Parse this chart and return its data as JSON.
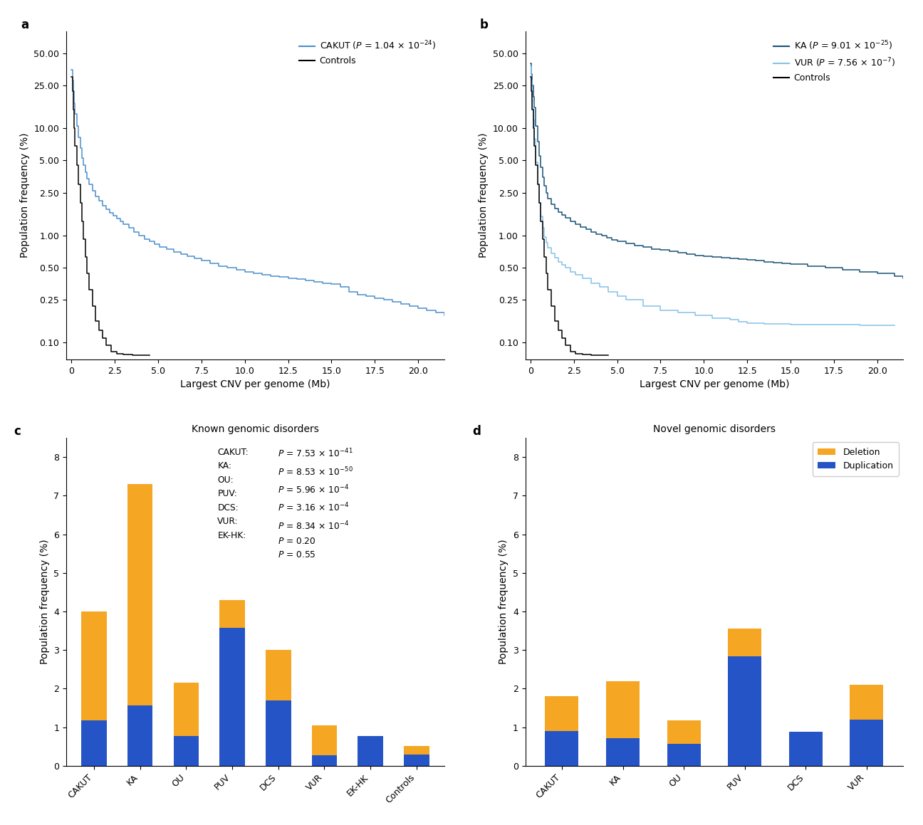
{
  "panel_a": {
    "title": "a",
    "xlabel": "Largest CNV per genome (Mb)",
    "ylabel": "Population frequency (%)",
    "cakut_label": "CAKUT ($P$ = 1.04 × 10$^{-24}$)",
    "controls_label": "Controls",
    "cakut_color": "#4d8fcc",
    "controls_color": "#000000",
    "yticks": [
      0.1,
      0.25,
      0.5,
      1.0,
      2.5,
      5.0,
      10.0,
      25.0,
      50.0
    ],
    "ytick_labels": [
      "0.10",
      "0.25",
      "0.50",
      "1.00",
      "2.50",
      "5.00",
      "10.00",
      "25.00",
      "50.00"
    ],
    "xticks": [
      0,
      2.5,
      5.0,
      7.5,
      10.0,
      12.5,
      15.0,
      17.5,
      20.0
    ],
    "xlim": [
      -0.3,
      21.5
    ],
    "ylim_log": [
      0.07,
      80
    ]
  },
  "panel_b": {
    "title": "b",
    "xlabel": "Largest CNV per genome (Mb)",
    "ylabel": "Population frequency (%)",
    "ka_label": "KA ($P$ = 9.01 × 10$^{-25}$)",
    "vur_label": "VUR ($P$ = 7.56 × 10$^{-7}$)",
    "controls_label": "Controls",
    "ka_color": "#1a5276",
    "vur_color": "#85c1e9",
    "controls_color": "#000000",
    "yticks": [
      0.1,
      0.25,
      0.5,
      1.0,
      2.5,
      5.0,
      10.0,
      25.0,
      50.0
    ],
    "ytick_labels": [
      "0.10",
      "0.25",
      "0.50",
      "1.00",
      "2.50",
      "5.00",
      "10.00",
      "25.00",
      "50.00"
    ],
    "xticks": [
      0,
      2.5,
      5.0,
      7.5,
      10.0,
      12.5,
      15.0,
      17.5,
      20.0
    ],
    "xlim": [
      -0.3,
      21.5
    ],
    "ylim_log": [
      0.07,
      80
    ]
  },
  "panel_c": {
    "title": "c",
    "plot_title": "Known genomic disorders",
    "xlabel": "",
    "ylabel": "Population frequency (%)",
    "categories": [
      "CAKUT",
      "KA",
      "OU",
      "PUV",
      "DCS",
      "VUR",
      "EK-HK",
      "Controls"
    ],
    "blue_values": [
      1.17,
      1.57,
      0.78,
      3.57,
      1.7,
      0.28,
      0.78,
      0.3
    ],
    "gold_values": [
      2.83,
      5.73,
      1.37,
      0.73,
      1.3,
      0.77,
      0.0,
      0.22
    ],
    "blue_color": "#2554c7",
    "gold_color": "#f5a623",
    "ylim": [
      0,
      8.5
    ],
    "yticks": [
      0,
      1,
      2,
      3,
      4,
      5,
      6,
      7,
      8
    ]
  },
  "panel_d": {
    "title": "d",
    "plot_title": "Novel genomic disorders",
    "xlabel": "",
    "ylabel": "Population frequency (%)",
    "categories": [
      "CAKUT",
      "KA",
      "OU",
      "PUV",
      "DCS",
      "VUR"
    ],
    "blue_values": [
      0.9,
      0.72,
      0.57,
      2.83,
      0.88,
      1.2
    ],
    "gold_values": [
      0.9,
      1.48,
      0.6,
      0.72,
      0.0,
      0.9
    ],
    "blue_color": "#2554c7",
    "gold_color": "#f5a623",
    "ylim": [
      0,
      8.5
    ],
    "yticks": [
      0,
      1,
      2,
      3,
      4,
      5,
      6,
      7,
      8
    ],
    "legend_deletion": "Deletion",
    "legend_duplication": "Duplication"
  }
}
